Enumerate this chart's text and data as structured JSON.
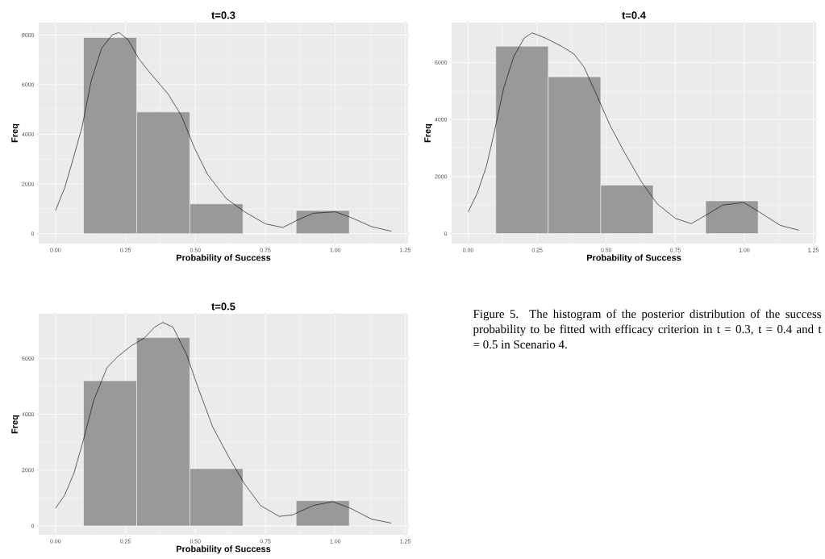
{
  "chart_data": [
    {
      "type": "histogram",
      "title": "t=0.3",
      "xlabel": "Probability of Success",
      "ylabel": "Freq",
      "bins": [
        0.1,
        0.29,
        0.48,
        0.67,
        0.86,
        1.05
      ],
      "values": [
        7900,
        4900,
        1200,
        0,
        930
      ],
      "color": "#999999",
      "xlim": [
        -0.06,
        1.26
      ],
      "ylim": [
        -400,
        8500
      ],
      "xticks": [
        {
          "value": 0,
          "label": "0.00"
        },
        {
          "value": 0.25,
          "label": "0.25"
        },
        {
          "value": 0.5,
          "label": "0.50"
        },
        {
          "value": 0.75,
          "label": "0.75"
        },
        {
          "value": 1,
          "label": "1.00"
        },
        {
          "value": 1.25,
          "label": "1.25"
        }
      ],
      "yticks": [
        0,
        2000,
        4000,
        6000,
        8000
      ],
      "grid": true,
      "series": [
        {
          "type": "line",
          "color": "#000000",
          "x": [
            0,
            0.033,
            0.061,
            0.095,
            0.128,
            0.165,
            0.203,
            0.227,
            0.26,
            0.298,
            0.336,
            0.402,
            0.449,
            0.496,
            0.543,
            0.61,
            0.676,
            0.751,
            0.813,
            0.865,
            0.921,
            1.0,
            1.054,
            1.13,
            1.2
          ],
          "values": [
            930,
            1850,
            2930,
            4300,
            6170,
            7470,
            8010,
            8100,
            7800,
            7040,
            6500,
            5630,
            4770,
            3470,
            2390,
            1420,
            880,
            390,
            250,
            550,
            820,
            880,
            660,
            280,
            100
          ]
        }
      ]
    },
    {
      "type": "histogram",
      "title": "t=0.4",
      "xlabel": "Probability of Success",
      "ylabel": "Freq",
      "bins": [
        0.1,
        0.29,
        0.48,
        0.67,
        0.86,
        1.05
      ],
      "values": [
        6570,
        5500,
        1700,
        0,
        1150
      ],
      "color": "#999999",
      "xlim": [
        -0.06,
        1.26
      ],
      "ylim": [
        -350,
        7400
      ],
      "xticks": [
        {
          "value": 0,
          "label": "0.00"
        },
        {
          "value": 0.25,
          "label": "0.25"
        },
        {
          "value": 0.5,
          "label": "0.50"
        },
        {
          "value": 0.75,
          "label": "0.75"
        },
        {
          "value": 1,
          "label": "1.00"
        },
        {
          "value": 1.25,
          "label": "1.25"
        }
      ],
      "yticks": [
        0,
        2000,
        4000,
        6000
      ],
      "grid": true,
      "series": [
        {
          "type": "line",
          "color": "#000000",
          "x": [
            0,
            0.033,
            0.066,
            0.095,
            0.128,
            0.165,
            0.203,
            0.232,
            0.279,
            0.336,
            0.383,
            0.42,
            0.468,
            0.515,
            0.567,
            0.629,
            0.685,
            0.751,
            0.808,
            0.865,
            0.921,
            0.998,
            1.054,
            1.13,
            1.198
          ],
          "values": [
            760,
            1420,
            2360,
            3580,
            5080,
            6210,
            6860,
            7040,
            6860,
            6580,
            6300,
            5830,
            4800,
            3770,
            2830,
            1790,
            1040,
            530,
            350,
            670,
            1000,
            1090,
            760,
            290,
            120
          ]
        }
      ]
    },
    {
      "type": "histogram",
      "title": "t=0.5",
      "xlabel": "Probability of Success",
      "ylabel": "Freq",
      "bins": [
        0.1,
        0.29,
        0.48,
        0.67,
        0.86,
        1.05
      ],
      "values": [
        5200,
        6750,
        2050,
        0,
        900
      ],
      "color": "#999999",
      "xlim": [
        -0.06,
        1.26
      ],
      "ylim": [
        -320,
        7600
      ],
      "xticks": [
        {
          "value": 0,
          "label": "0.00"
        },
        {
          "value": 0.25,
          "label": "0.25"
        },
        {
          "value": 0.5,
          "label": "0.50"
        },
        {
          "value": 0.75,
          "label": "0.75"
        },
        {
          "value": 1,
          "label": "1.00"
        },
        {
          "value": 1.25,
          "label": "1.25"
        }
      ],
      "yticks": [
        0,
        2000,
        4000,
        6000
      ],
      "grid": true,
      "annotations": [
        "Figure 5. The histogram of the posterior distribution of the success probability to be fitted with efficacy criterion in t = 0.3, t = 0.4 and t = 0.5 in Scenario 4."
      ],
      "series": [
        {
          "type": "line",
          "color": "#000000",
          "x": [
            0,
            0.033,
            0.066,
            0.099,
            0.137,
            0.184,
            0.222,
            0.269,
            0.317,
            0.354,
            0.383,
            0.42,
            0.468,
            0.515,
            0.562,
            0.619,
            0.676,
            0.733,
            0.799,
            0.846,
            0.921,
            0.991,
            1.054,
            1.13,
            1.2
          ],
          "values": [
            630,
            1110,
            1890,
            3050,
            4510,
            5670,
            6060,
            6440,
            6730,
            7120,
            7290,
            7120,
            6150,
            4800,
            3540,
            2470,
            1500,
            730,
            340,
            390,
            730,
            870,
            630,
            240,
            100
          ]
        }
      ]
    }
  ]
}
